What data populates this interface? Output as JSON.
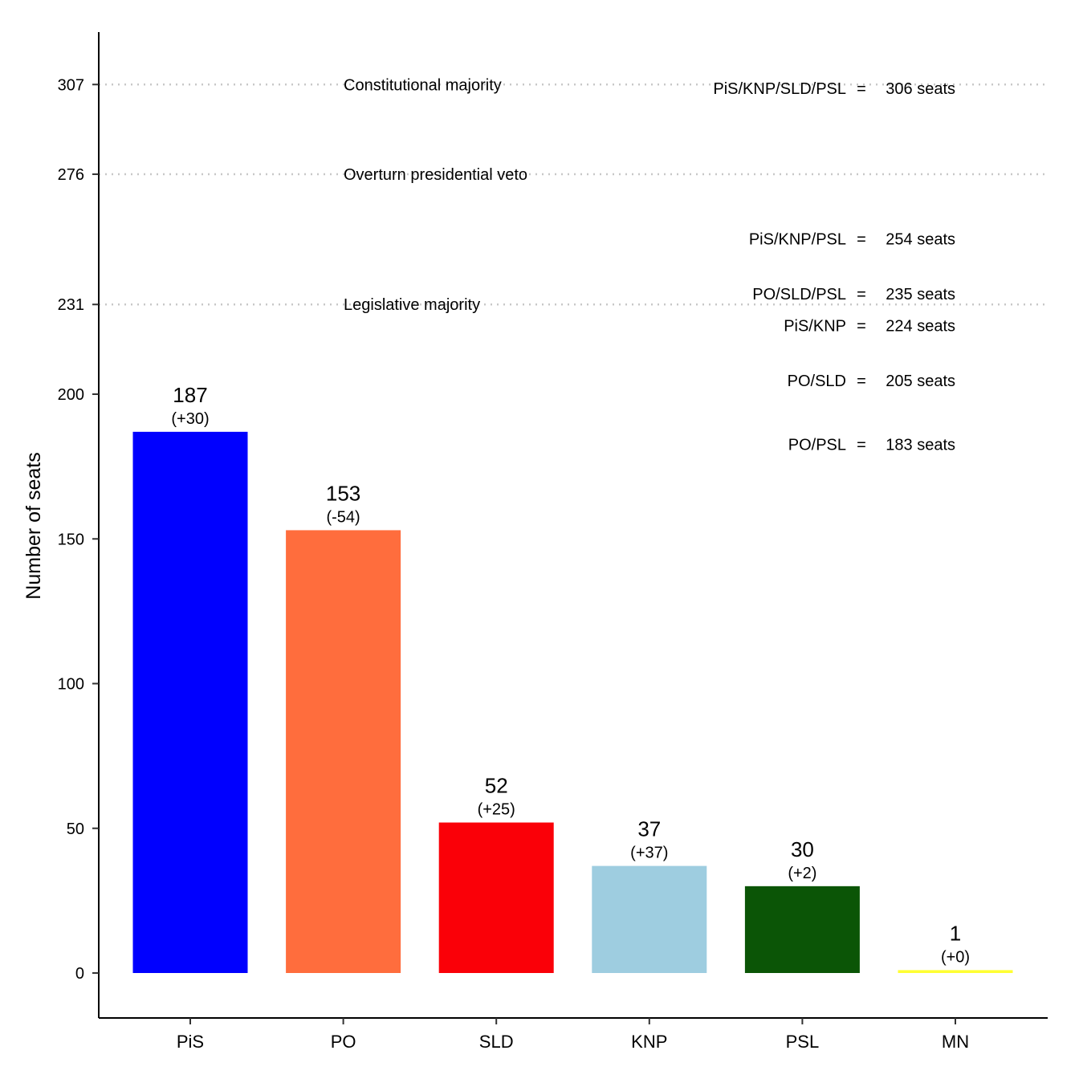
{
  "chart_data": {
    "type": "bar",
    "title": "",
    "xlabel": "",
    "ylabel": "Number of seats",
    "ylim": [
      -15,
      325
    ],
    "grid": false,
    "categories": [
      "PiS",
      "PO",
      "SLD",
      "KNP",
      "PSL",
      "MN"
    ],
    "values": [
      187,
      153,
      52,
      37,
      30,
      1
    ],
    "changes": [
      "(+30)",
      "(-54)",
      "(+25)",
      "(+37)",
      "(+2)",
      "(+0)"
    ],
    "colors": [
      "#0000FF",
      "#FF6D3D",
      "#FA0008",
      "#9ECDE0",
      "#0B5506",
      "#FFFF33"
    ],
    "yticks": [
      0,
      50,
      100,
      150,
      200,
      231,
      276,
      307
    ],
    "thresholds": [
      {
        "value": 307,
        "label": "Constitutional majority"
      },
      {
        "value": 276,
        "label": "Overturn presidential veto"
      },
      {
        "value": 231,
        "label": "Legislative majority"
      }
    ],
    "coalitions": [
      {
        "name": "PiS/KNP/SLD/PSL",
        "seats": 306,
        "text": "306 seats"
      },
      {
        "name": "PiS/KNP/PSL",
        "seats": 254,
        "text": "254 seats"
      },
      {
        "name": "PO/SLD/PSL",
        "seats": 235,
        "text": "235 seats"
      },
      {
        "name": "PiS/KNP",
        "seats": 224,
        "text": "224 seats"
      },
      {
        "name": "PO/SLD",
        "seats": 205,
        "text": "205 seats"
      },
      {
        "name": "PO/PSL",
        "seats": 183,
        "text": "183 seats"
      }
    ],
    "equals": "="
  }
}
